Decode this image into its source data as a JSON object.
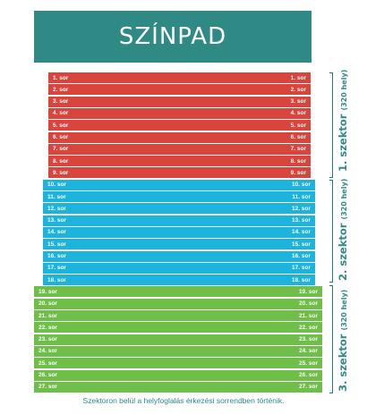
{
  "stage": {
    "title": "SZÍNPAD"
  },
  "colors": {
    "stage": "#2f8a86",
    "sector_1": "#d9443c",
    "sector_2": "#1cb4dd",
    "sector_3": "#6fbe4a",
    "accent": "#1f7b77"
  },
  "sectors": [
    {
      "id": 1,
      "title": "1. szektor",
      "capacity": "(320 hely)",
      "rows": [
        "1. sor",
        "2. sor",
        "3. sor",
        "4. sor",
        "5. sor",
        "6. sor",
        "7. sor",
        "8. sor",
        "9. sor"
      ]
    },
    {
      "id": 2,
      "title": "2. szektor",
      "capacity": "(320 hely)",
      "rows": [
        "10. sor",
        "11. sor",
        "12. sor",
        "13. sor",
        "14. sor",
        "15. sor",
        "16. sor",
        "17. sor",
        "18. sor"
      ]
    },
    {
      "id": 3,
      "title": "3. szektor",
      "capacity": "(320 hely)",
      "rows": [
        "19. sor",
        "20. sor",
        "21. sor",
        "22. sor",
        "23. sor",
        "24. sor",
        "25. sor",
        "26. sor",
        "27. sor"
      ]
    }
  ],
  "footnote": "Szektoron belül a helyfoglalás érkezési sorrendben történik."
}
